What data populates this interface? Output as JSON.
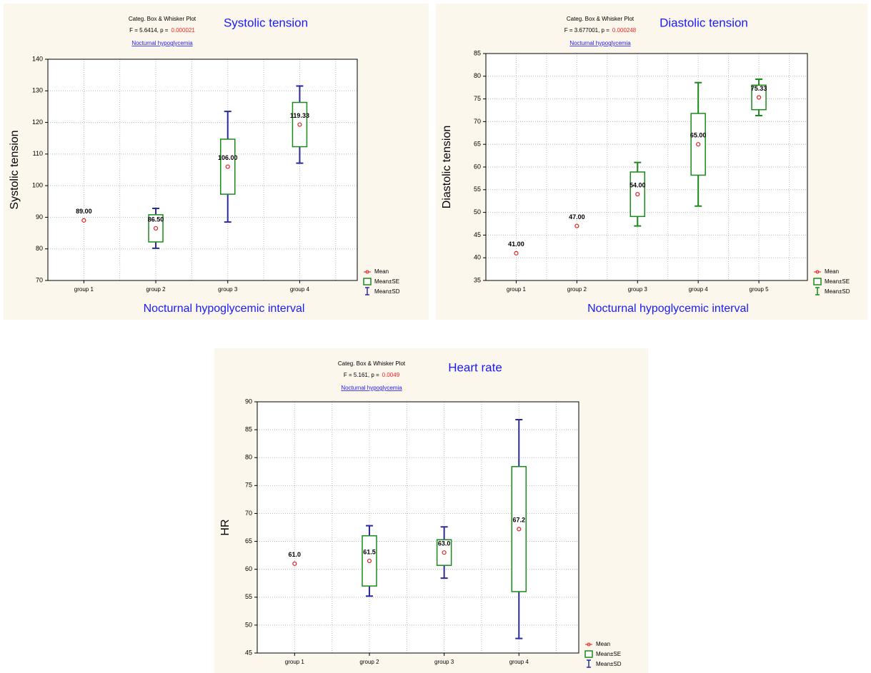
{
  "chart_data": [
    {
      "type": "box",
      "header": "Categ. Box & Whisker Plot",
      "stat": "F = 5.6414, p =",
      "p_value": "0.000021",
      "subtitle": "Nocturnal hypoglycemia",
      "title": "Systolic tension",
      "y_label": "Systolic tension",
      "x_label": "Nocturnal hypoglycemic interval",
      "categories": [
        "group 1",
        "group 2",
        "group 3",
        "group 4"
      ],
      "series": [
        {
          "name": "Mean",
          "color": "#e02020",
          "values": [
            89,
            86.5,
            106,
            119.33
          ],
          "value_labels": [
            "89.00",
            "86.50",
            "106.00",
            "119.33"
          ]
        },
        {
          "name": "Mean±SE",
          "color": "#1a8a1a",
          "values": [
            null,
            4.3,
            8.7,
            7
          ]
        },
        {
          "name": "Mean±SD",
          "color": "#2a2a9a",
          "values": [
            null,
            6.3,
            17.5,
            12.2
          ]
        }
      ],
      "ylim": [
        70,
        140
      ],
      "yticks": [
        70,
        80,
        90,
        100,
        110,
        120,
        130,
        140
      ],
      "grid": true
    },
    {
      "type": "box",
      "header": "Categ. Box & Whisker Plot",
      "stat": "F = 3.677001, p =",
      "p_value": "0.000248",
      "subtitle": "Nocturnal hypoglycemia",
      "title": "Diastolic tension",
      "y_label": "Diastolic tension",
      "x_label": "Nocturnal hypoglycemic interval",
      "categories": [
        "group 1",
        "group 2",
        "group 3",
        "group 4",
        "group 5"
      ],
      "series": [
        {
          "name": "Mean",
          "color": "#e02020",
          "values": [
            41,
            47,
            54,
            65,
            75.33
          ],
          "value_labels": [
            "41.00",
            "47.00",
            "54.00",
            "65.00",
            "75.33"
          ]
        },
        {
          "name": "Mean±SE",
          "color": "#1a8a1a",
          "values": [
            null,
            null,
            4.9,
            6.8,
            2.7
          ]
        },
        {
          "name": "Mean±SD",
          "color": "#1a8a1a",
          "values": [
            null,
            null,
            7,
            13.6,
            4
          ]
        }
      ],
      "ylim": [
        35,
        85
      ],
      "yticks": [
        35,
        40,
        45,
        50,
        55,
        60,
        65,
        70,
        75,
        80,
        85
      ],
      "grid": true
    },
    {
      "type": "box",
      "header": "Categ. Box & Whisker Plot",
      "stat": "F = 5.161, p =",
      "p_value": "0.0049",
      "subtitle": "Nocturnal hypoglycemia",
      "title": "Heart rate",
      "y_label": "HR",
      "x_label": "Nocturnal hypoglycemic interval",
      "categories": [
        "group 1",
        "group 2",
        "group 3",
        "group 4"
      ],
      "series": [
        {
          "name": "Mean",
          "color": "#e02020",
          "values": [
            61,
            61.5,
            63,
            67.2
          ],
          "value_labels": [
            "61.0",
            "61.5",
            "63.0",
            "67.2"
          ]
        },
        {
          "name": "Mean±SE",
          "color": "#1a8a1a",
          "values": [
            null,
            4.5,
            2.3,
            11.2
          ]
        },
        {
          "name": "Mean±SD",
          "color": "#2a2a9a",
          "values": [
            null,
            6.3,
            4.6,
            19.6
          ]
        }
      ],
      "ylim": [
        45,
        90
      ],
      "yticks": [
        45,
        50,
        55,
        60,
        65,
        70,
        75,
        80,
        85,
        90
      ],
      "grid": true
    }
  ]
}
